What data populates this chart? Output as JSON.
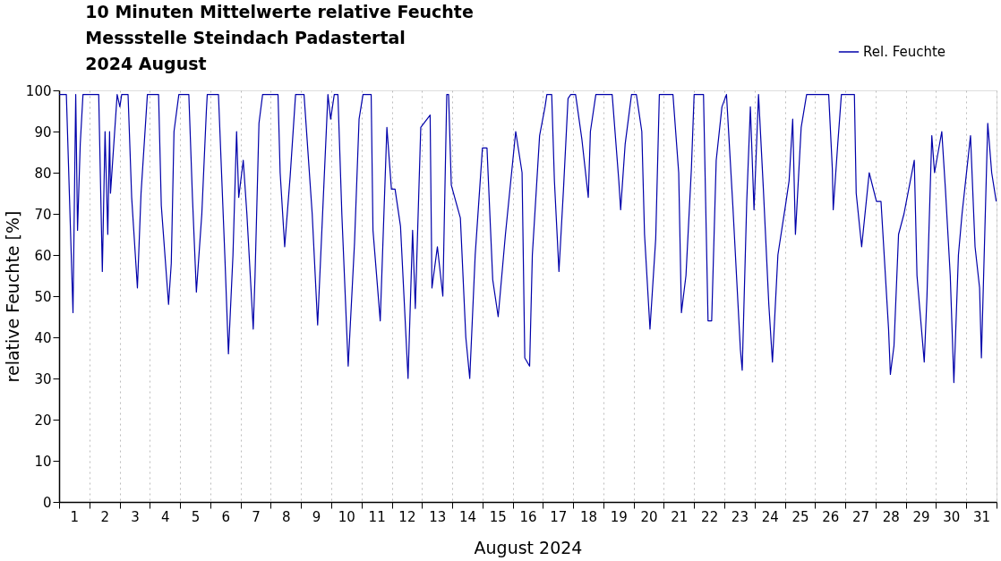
{
  "chart_data": {
    "type": "line",
    "title": [
      "10 Minuten Mittelwerte relative Feuchte",
      "Messstelle Steindach Padastertal",
      "2024 August"
    ],
    "xlabel": "August 2024",
    "ylabel": "relative Feuchte [%]",
    "xlim": [
      0,
      31
    ],
    "ylim": [
      0,
      100
    ],
    "yticks": [
      0,
      10,
      20,
      30,
      40,
      50,
      60,
      70,
      80,
      90,
      100
    ],
    "xticks": [
      {
        "value": 0,
        "label": null
      },
      {
        "value": 0.5,
        "label": "1"
      },
      {
        "value": 1,
        "label": null
      },
      {
        "value": 1.5,
        "label": "2"
      },
      {
        "value": 2,
        "label": null
      },
      {
        "value": 2.5,
        "label": "3"
      },
      {
        "value": 3,
        "label": null
      },
      {
        "value": 3.5,
        "label": "4"
      },
      {
        "value": 4,
        "label": null
      },
      {
        "value": 4.5,
        "label": "5"
      },
      {
        "value": 5,
        "label": null
      },
      {
        "value": 5.5,
        "label": "6"
      },
      {
        "value": 6,
        "label": null
      },
      {
        "value": 6.5,
        "label": "7"
      },
      {
        "value": 7,
        "label": null
      },
      {
        "value": 7.5,
        "label": "8"
      },
      {
        "value": 8,
        "label": null
      },
      {
        "value": 8.5,
        "label": "9"
      },
      {
        "value": 9,
        "label": null
      },
      {
        "value": 9.5,
        "label": "10"
      },
      {
        "value": 10,
        "label": null
      },
      {
        "value": 10.5,
        "label": "11"
      },
      {
        "value": 11,
        "label": null
      },
      {
        "value": 11.5,
        "label": "12"
      },
      {
        "value": 12,
        "label": null
      },
      {
        "value": 12.5,
        "label": "13"
      },
      {
        "value": 13,
        "label": null
      },
      {
        "value": 13.5,
        "label": "14"
      },
      {
        "value": 14,
        "label": null
      },
      {
        "value": 14.5,
        "label": "15"
      },
      {
        "value": 15,
        "label": null
      },
      {
        "value": 15.5,
        "label": "16"
      },
      {
        "value": 16,
        "label": null
      },
      {
        "value": 16.5,
        "label": "17"
      },
      {
        "value": 17,
        "label": null
      },
      {
        "value": 17.5,
        "label": "18"
      },
      {
        "value": 18,
        "label": null
      },
      {
        "value": 18.5,
        "label": "19"
      },
      {
        "value": 19,
        "label": null
      },
      {
        "value": 19.5,
        "label": "20"
      },
      {
        "value": 20,
        "label": null
      },
      {
        "value": 20.5,
        "label": "21"
      },
      {
        "value": 21,
        "label": null
      },
      {
        "value": 21.5,
        "label": "22"
      },
      {
        "value": 22,
        "label": null
      },
      {
        "value": 22.5,
        "label": "23"
      },
      {
        "value": 23,
        "label": null
      },
      {
        "value": 23.5,
        "label": "24"
      },
      {
        "value": 24,
        "label": null
      },
      {
        "value": 24.5,
        "label": "25"
      },
      {
        "value": 25,
        "label": null
      },
      {
        "value": 25.5,
        "label": "26"
      },
      {
        "value": 26,
        "label": null
      },
      {
        "value": 26.5,
        "label": "27"
      },
      {
        "value": 27,
        "label": null
      },
      {
        "value": 27.5,
        "label": "28"
      },
      {
        "value": 28,
        "label": null
      },
      {
        "value": 28.5,
        "label": "29"
      },
      {
        "value": 29,
        "label": null
      },
      {
        "value": 29.5,
        "label": "30"
      },
      {
        "value": 30,
        "label": null
      },
      {
        "value": 30.5,
        "label": "31"
      },
      {
        "value": 31,
        "label": null
      }
    ],
    "grid": "x",
    "legend": "top right",
    "marker": "none",
    "line_style": "solid",
    "series": [
      {
        "name": "Rel. Feuchte",
        "color": "#0000aa",
        "x": [
          0.0,
          0.24,
          0.46,
          0.55,
          0.61,
          0.7,
          0.79,
          1.31,
          1.43,
          1.52,
          1.61,
          1.67,
          1.7,
          1.92,
          2.01,
          2.07,
          2.28,
          2.4,
          2.59,
          2.71,
          2.92,
          3.29,
          3.38,
          3.62,
          3.71,
          3.8,
          3.96,
          4.29,
          4.41,
          4.54,
          4.72,
          4.87,
          4.9,
          5.27,
          5.48,
          5.6,
          5.75,
          5.87,
          5.94,
          6.09,
          6.21,
          6.42,
          6.48,
          6.61,
          6.73,
          7.24,
          7.31,
          7.46,
          7.64,
          7.82,
          8.1,
          8.37,
          8.55,
          8.89,
          8.98,
          9.1,
          9.22,
          9.35,
          9.56,
          9.77,
          9.92,
          10.05,
          10.32,
          10.38,
          10.62,
          10.84,
          10.99,
          11.11,
          11.29,
          11.54,
          11.69,
          11.78,
          11.96,
          12.27,
          12.33,
          12.51,
          12.69,
          12.82,
          12.88,
          12.97,
          13.27,
          13.45,
          13.58,
          13.76,
          14.0,
          14.15,
          14.34,
          14.52,
          14.76,
          15.1,
          15.31,
          15.4,
          15.56,
          15.65,
          15.89,
          16.07,
          16.13,
          16.29,
          16.38,
          16.53,
          16.68,
          16.83,
          16.92,
          17.08,
          17.29,
          17.5,
          17.57,
          17.75,
          18.29,
          18.51,
          18.57,
          18.72,
          18.93,
          19.09,
          19.27,
          19.36,
          19.54,
          19.73,
          19.85,
          20.3,
          20.49,
          20.58,
          20.73,
          20.91,
          21.0,
          21.31,
          21.46,
          21.58,
          21.73,
          21.92,
          22.07,
          22.28,
          22.53,
          22.59,
          22.74,
          22.86,
          22.98,
          23.13,
          23.29,
          23.47,
          23.59,
          23.77,
          24.02,
          24.14,
          24.26,
          24.35,
          24.54,
          24.72,
          25.45,
          25.57,
          25.6,
          25.75,
          25.87,
          26.3,
          26.36,
          26.54,
          26.79,
          27.03,
          27.18,
          27.43,
          27.49,
          27.61,
          27.76,
          27.94,
          28.28,
          28.37,
          28.61,
          28.7,
          28.86,
          28.95,
          29.19,
          29.31,
          29.47,
          29.59,
          29.74,
          29.86,
          30.14,
          30.29,
          30.44,
          30.5,
          30.71,
          30.84,
          30.99
        ],
        "values": [
          99,
          99,
          46,
          99,
          66,
          87,
          99,
          99,
          56,
          90,
          65,
          90,
          75,
          99,
          96,
          99,
          99,
          74,
          52,
          75,
          99,
          99,
          72,
          48,
          58,
          90,
          99,
          99,
          74,
          51,
          70,
          95,
          99,
          99,
          60,
          36,
          60,
          90,
          74,
          83,
          70,
          42,
          55,
          92,
          99,
          99,
          80,
          62,
          79,
          99,
          99,
          70,
          43,
          99,
          93,
          99,
          99,
          70,
          33,
          63,
          93,
          99,
          99,
          66,
          44,
          91,
          76,
          76,
          67,
          30,
          66,
          47,
          91,
          94,
          52,
          62,
          50,
          99,
          99,
          77,
          69,
          40,
          30,
          60,
          86,
          86,
          54,
          45,
          65,
          90,
          80,
          35,
          33,
          60,
          89,
          96,
          99,
          99,
          78,
          56,
          76,
          98,
          99,
          99,
          88,
          74,
          90,
          99,
          99,
          78,
          71,
          87,
          99,
          99,
          90,
          65,
          42,
          64,
          99,
          99,
          80,
          46,
          55,
          81,
          99,
          99,
          44,
          44,
          83,
          96,
          99,
          72,
          37,
          32,
          73,
          96,
          71,
          99,
          76,
          48,
          34,
          60,
          72,
          78,
          93,
          65,
          91,
          99,
          99,
          81,
          71,
          87,
          99,
          99,
          75,
          62,
          80,
          73,
          73,
          42,
          31,
          38,
          65,
          70,
          83,
          55,
          34,
          50,
          89,
          80,
          90,
          76,
          55,
          29,
          60,
          70,
          89,
          62,
          52,
          35,
          92,
          80,
          73
        ]
      }
    ]
  }
}
